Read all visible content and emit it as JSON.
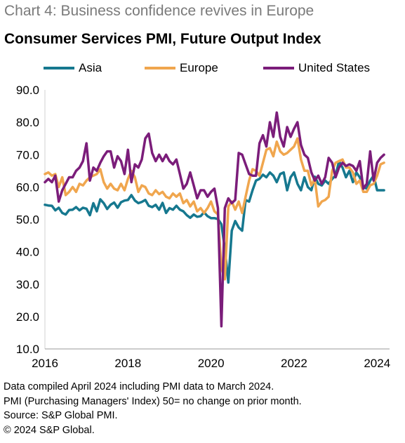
{
  "supertitle": "Chart 4: Business confidence revives in Europe",
  "chart_data": {
    "type": "line",
    "title": "Consumer Services PMI, Future Output Index",
    "xlabel": "",
    "ylabel": "",
    "xlim": [
      2016,
      2024.3
    ],
    "ylim": [
      10,
      90
    ],
    "yticks": [
      "90.0",
      "80.0",
      "70.0",
      "60.0",
      "50.0",
      "40.0",
      "30.0",
      "20.0",
      "10.0"
    ],
    "xticks": [
      "2016",
      "2018",
      "2020",
      "2022",
      "2024"
    ],
    "legend_position": "top",
    "grid": false,
    "series": [
      {
        "name": "Asia",
        "color": "#16788f",
        "x": [
          2016.0,
          2016.083,
          2016.167,
          2016.25,
          2016.333,
          2016.417,
          2016.5,
          2016.583,
          2016.667,
          2016.75,
          2016.833,
          2016.917,
          2017.0,
          2017.083,
          2017.167,
          2017.25,
          2017.333,
          2017.417,
          2017.5,
          2017.583,
          2017.667,
          2017.75,
          2017.833,
          2017.917,
          2018.0,
          2018.083,
          2018.167,
          2018.25,
          2018.333,
          2018.417,
          2018.5,
          2018.583,
          2018.667,
          2018.75,
          2018.833,
          2018.917,
          2019.0,
          2019.083,
          2019.167,
          2019.25,
          2019.333,
          2019.417,
          2019.5,
          2019.583,
          2019.667,
          2019.75,
          2019.833,
          2019.917,
          2020.0,
          2020.083,
          2020.167,
          2020.25,
          2020.333,
          2020.417,
          2020.5,
          2020.583,
          2020.667,
          2020.75,
          2020.833,
          2020.917,
          2021.0,
          2021.083,
          2021.167,
          2021.25,
          2021.333,
          2021.417,
          2021.5,
          2021.583,
          2021.667,
          2021.75,
          2021.833,
          2021.917,
          2022.0,
          2022.083,
          2022.167,
          2022.25,
          2022.333,
          2022.417,
          2022.5,
          2022.583,
          2022.667,
          2022.75,
          2022.833,
          2022.917,
          2023.0,
          2023.083,
          2023.167,
          2023.25,
          2023.333,
          2023.417,
          2023.5,
          2023.583,
          2023.667,
          2023.75,
          2023.833,
          2023.917,
          2024.0,
          2024.083,
          2024.167
        ],
        "values": [
          54.5,
          54.3,
          54.2,
          52.8,
          53.6,
          52.0,
          51.5,
          52.9,
          53.0,
          53.8,
          52.8,
          53.6,
          53.3,
          51.3,
          55.0,
          52.5,
          56.2,
          55.0,
          53.2,
          54.5,
          55.2,
          53.6,
          55.3,
          55.8,
          56.0,
          57.5,
          55.8,
          55.0,
          55.4,
          56.0,
          54.2,
          53.8,
          54.5,
          53.0,
          55.1,
          52.0,
          53.5,
          53.0,
          54.2,
          53.0,
          52.5,
          51.3,
          50.5,
          51.5,
          50.8,
          51.0,
          52.2,
          51.0,
          50.4,
          50.4,
          50.1,
          48.5,
          41.0,
          30.5,
          46.5,
          49.5,
          47.5,
          46.5,
          56.0,
          55.5,
          59.0,
          62.0,
          62.5,
          63.8,
          63.0,
          64.5,
          63.5,
          61.5,
          64.0,
          64.5,
          59.0,
          63.0,
          64.5,
          61.0,
          59.0,
          63.0,
          60.0,
          59.0,
          63.2,
          61.0,
          60.5,
          62.0,
          61.0,
          62.5,
          63.5,
          68.0,
          66.0,
          63.0,
          65.0,
          61.5,
          64.5,
          63.0,
          60.0,
          59.5,
          62.0,
          63.5,
          59.0,
          59.0,
          59.0
        ]
      },
      {
        "name": "Europe",
        "color": "#f0a64e",
        "x": [
          2016.0,
          2016.083,
          2016.167,
          2016.25,
          2016.333,
          2016.417,
          2016.5,
          2016.583,
          2016.667,
          2016.75,
          2016.833,
          2016.917,
          2017.0,
          2017.083,
          2017.167,
          2017.25,
          2017.333,
          2017.417,
          2017.5,
          2017.583,
          2017.667,
          2017.75,
          2017.833,
          2017.917,
          2018.0,
          2018.083,
          2018.167,
          2018.25,
          2018.333,
          2018.417,
          2018.5,
          2018.583,
          2018.667,
          2018.75,
          2018.833,
          2018.917,
          2019.0,
          2019.083,
          2019.167,
          2019.25,
          2019.333,
          2019.417,
          2019.5,
          2019.583,
          2019.667,
          2019.75,
          2019.833,
          2019.917,
          2020.0,
          2020.083,
          2020.167,
          2020.25,
          2020.333,
          2020.417,
          2020.5,
          2020.583,
          2020.667,
          2020.75,
          2020.833,
          2020.917,
          2021.0,
          2021.083,
          2021.167,
          2021.25,
          2021.333,
          2021.417,
          2021.5,
          2021.583,
          2021.667,
          2021.75,
          2021.833,
          2021.917,
          2022.0,
          2022.083,
          2022.167,
          2022.25,
          2022.333,
          2022.417,
          2022.5,
          2022.583,
          2022.667,
          2022.75,
          2022.833,
          2022.917,
          2023.0,
          2023.083,
          2023.167,
          2023.25,
          2023.333,
          2023.417,
          2023.5,
          2023.583,
          2023.667,
          2023.75,
          2023.833,
          2023.917,
          2024.0,
          2024.083,
          2024.167
        ],
        "values": [
          64.0,
          64.5,
          63.5,
          64.0,
          60.0,
          63.0,
          57.5,
          58.5,
          60.0,
          58.5,
          61.0,
          60.5,
          62.0,
          63.0,
          63.5,
          64.0,
          65.5,
          61.5,
          59.5,
          61.0,
          59.5,
          59.0,
          61.0,
          59.0,
          62.5,
          65.0,
          63.0,
          58.5,
          60.5,
          60.0,
          58.0,
          57.5,
          59.0,
          57.8,
          58.5,
          57.0,
          56.5,
          58.0,
          57.0,
          58.0,
          55.0,
          56.0,
          54.0,
          55.5,
          52.5,
          53.5,
          52.0,
          53.5,
          55.5,
          52.5,
          51.5,
          35.0,
          31.5,
          54.0,
          55.5,
          53.0,
          55.5,
          52.0,
          57.0,
          62.0,
          65.5,
          65.0,
          63.5,
          67.5,
          71.5,
          72.0,
          69.5,
          74.0,
          71.0,
          70.0,
          70.5,
          71.5,
          72.5,
          75.0,
          68.5,
          65.0,
          65.0,
          60.5,
          62.5,
          54.0,
          55.5,
          56.0,
          57.0,
          65.0,
          67.5,
          68.0,
          68.5,
          66.0,
          66.0,
          64.5,
          61.0,
          62.0,
          58.5,
          58.5,
          60.5,
          61.0,
          63.5,
          67.0,
          67.5
        ]
      },
      {
        "name": "United States",
        "color": "#7b1d7a",
        "x": [
          2016.0,
          2016.083,
          2016.167,
          2016.25,
          2016.333,
          2016.417,
          2016.5,
          2016.583,
          2016.667,
          2016.75,
          2016.833,
          2016.917,
          2017.0,
          2017.083,
          2017.167,
          2017.25,
          2017.333,
          2017.417,
          2017.5,
          2017.583,
          2017.667,
          2017.75,
          2017.833,
          2017.917,
          2018.0,
          2018.083,
          2018.167,
          2018.25,
          2018.333,
          2018.417,
          2018.5,
          2018.583,
          2018.667,
          2018.75,
          2018.833,
          2018.917,
          2019.0,
          2019.083,
          2019.167,
          2019.25,
          2019.333,
          2019.417,
          2019.5,
          2019.583,
          2019.667,
          2019.75,
          2019.833,
          2019.917,
          2020.0,
          2020.083,
          2020.167,
          2020.25,
          2020.333,
          2020.417,
          2020.5,
          2020.583,
          2020.667,
          2020.75,
          2020.833,
          2020.917,
          2021.0,
          2021.083,
          2021.167,
          2021.25,
          2021.333,
          2021.417,
          2021.5,
          2021.583,
          2021.667,
          2021.75,
          2021.833,
          2021.917,
          2022.0,
          2022.083,
          2022.167,
          2022.25,
          2022.333,
          2022.417,
          2022.5,
          2022.583,
          2022.667,
          2022.75,
          2022.833,
          2022.917,
          2023.0,
          2023.083,
          2023.167,
          2023.25,
          2023.333,
          2023.417,
          2023.5,
          2023.583,
          2023.667,
          2023.75,
          2023.833,
          2023.917,
          2024.0,
          2024.083,
          2024.167
        ],
        "values": [
          61.5,
          62.5,
          61.5,
          63.5,
          55.5,
          59.0,
          61.0,
          63.0,
          63.0,
          65.0,
          66.0,
          68.0,
          73.5,
          62.0,
          66.0,
          65.0,
          67.5,
          69.5,
          71.0,
          71.0,
          66.0,
          69.5,
          68.0,
          64.0,
          71.5,
          61.5,
          67.0,
          66.0,
          68.5,
          75.0,
          76.5,
          70.5,
          68.0,
          70.0,
          68.0,
          70.0,
          68.0,
          67.0,
          68.5,
          64.0,
          59.5,
          61.0,
          64.5,
          60.5,
          56.5,
          59.0,
          59.0,
          57.0,
          58.5,
          59.5,
          53.5,
          17.0,
          53.5,
          56.5,
          55.0,
          56.0,
          70.5,
          70.0,
          67.0,
          64.0,
          63.5,
          63.5,
          73.5,
          76.0,
          72.5,
          80.0,
          75.5,
          83.0,
          75.5,
          72.5,
          78.5,
          75.5,
          78.0,
          80.0,
          73.0,
          70.0,
          69.0,
          64.5,
          62.0,
          63.5,
          61.0,
          63.0,
          69.0,
          67.5,
          63.0,
          66.0,
          67.5,
          66.5,
          67.0,
          66.5,
          65.0,
          68.0,
          59.5,
          61.0,
          71.0,
          62.0,
          67.5,
          69.0,
          70.0
        ]
      }
    ]
  },
  "notes": [
    "Data compiled April 2024 including PMI data to March 2024.",
    "PMI (Purchasing Managers' Index) 50= no change on prior month.",
    "Source: S&P Global PMI.",
    "© 2024 S&P Global."
  ]
}
